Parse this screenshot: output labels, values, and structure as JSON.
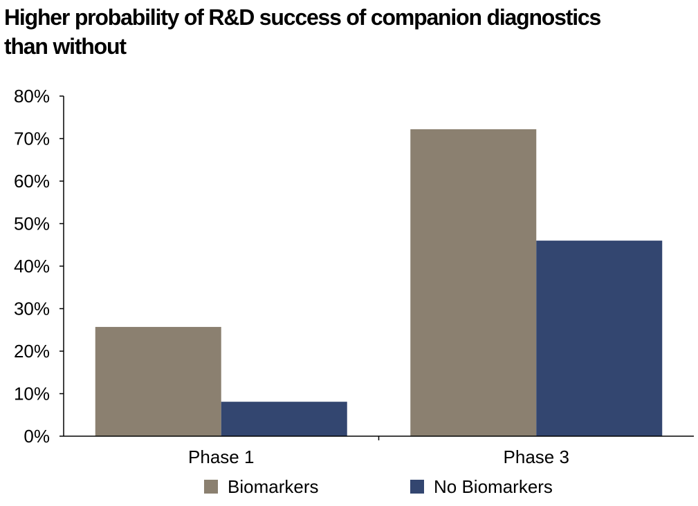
{
  "chart_data": {
    "type": "bar",
    "title_lines": [
      "Higher probability of R&D success of companion diagnostics",
      "than without"
    ],
    "xlabel": "",
    "ylabel": "",
    "categories": [
      "Phase 1",
      "Phase 3"
    ],
    "series": [
      {
        "name": "Biomarkers",
        "color": "#8b8070",
        "values": [
          25.7,
          72.2
        ]
      },
      {
        "name": "No Biomarkers",
        "color": "#334670",
        "values": [
          8.1,
          46.0
        ]
      }
    ],
    "ylim": [
      0,
      80
    ],
    "yticks": [
      0,
      10,
      20,
      30,
      40,
      50,
      60,
      70,
      80
    ],
    "y_tick_suffix": "%",
    "grid": false,
    "legend_position": "bottom"
  }
}
